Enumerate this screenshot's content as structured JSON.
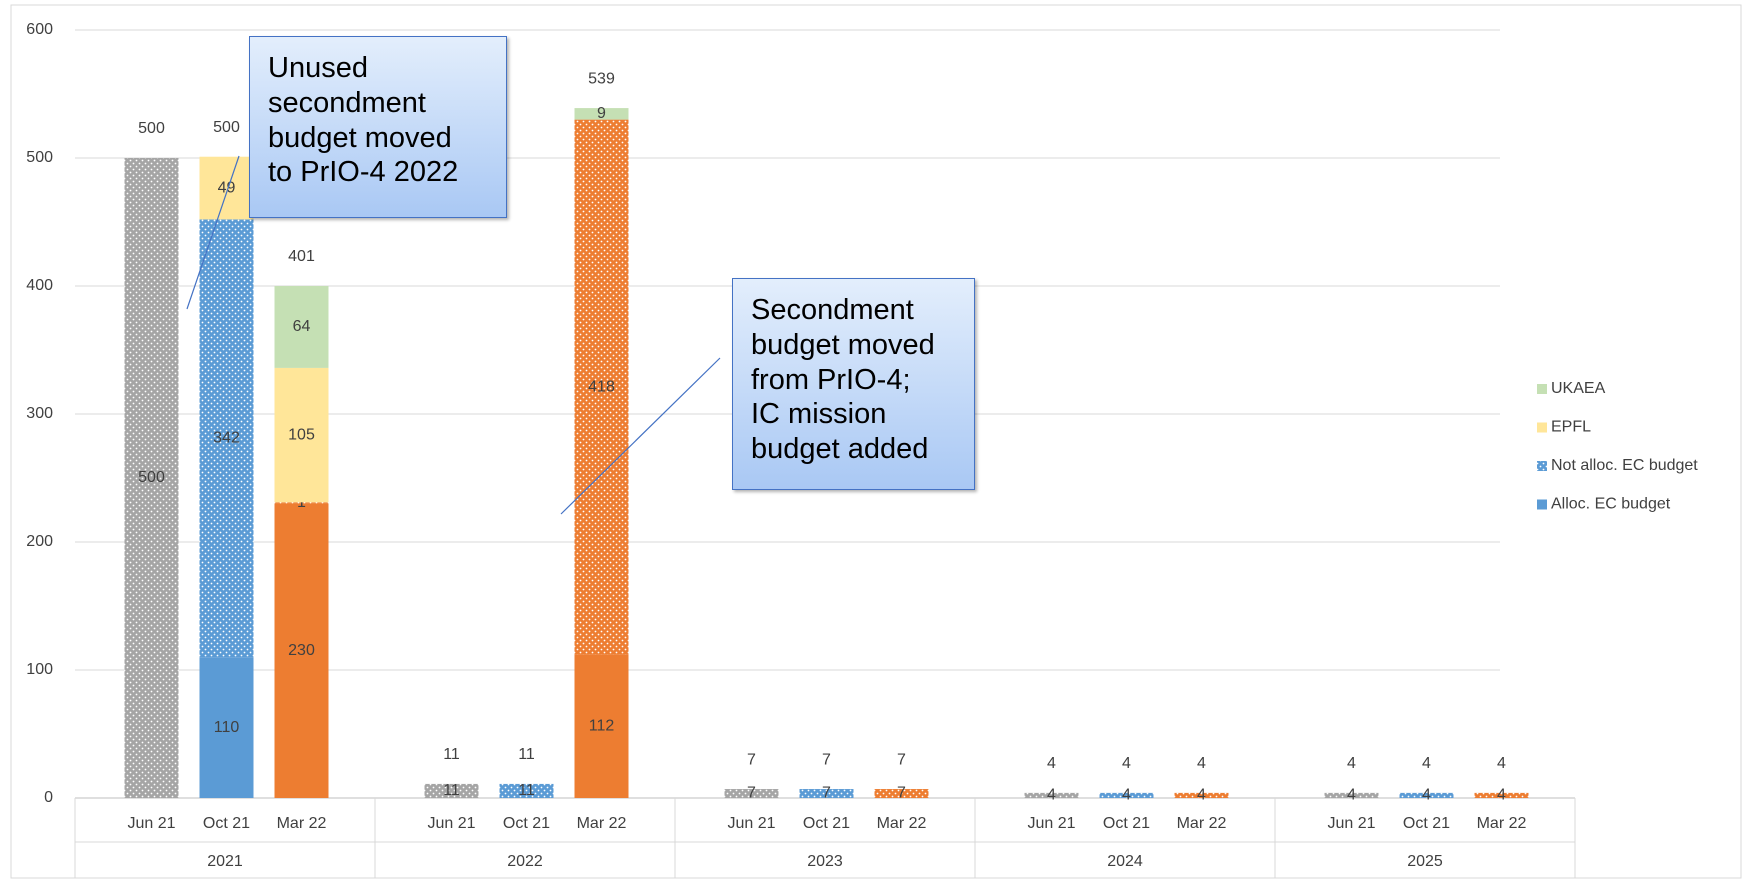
{
  "chart_data": {
    "type": "stacked_bar",
    "categories": [
      "Jun 21",
      "Oct 21",
      "Mar 22",
      "Jun 21",
      "Oct 21",
      "Mar 22",
      "Jun 21",
      "Oct 21",
      "Mar 22",
      "Jun 21",
      "Oct 21",
      "Mar 22",
      "Jun 21",
      "Oct 21",
      "Mar 22"
    ],
    "groups": [
      "2021",
      "2022",
      "2023",
      "2024",
      "2025"
    ],
    "bar_colors": [
      "#a5a5a5",
      "#5b9bd5",
      "#ed7d31",
      "#a5a5a5",
      "#5b9bd5",
      "#ed7d31",
      "#a5a5a5",
      "#5b9bd5",
      "#ed7d31",
      "#a5a5a5",
      "#5b9bd5",
      "#ed7d31",
      "#a5a5a5",
      "#5b9bd5",
      "#ed7d31"
    ],
    "series": [
      {
        "name": "Alloc. EC budget",
        "color": "#5b9bd5",
        "use_bar_color": true,
        "values": [
          null,
          110,
          230,
          null,
          null,
          112,
          null,
          null,
          null,
          null,
          null,
          null,
          null,
          null,
          null
        ]
      },
      {
        "name": "Not alloc. EC budget",
        "color": "#5b9bd5",
        "use_bar_color": true,
        "pattern": "dotted",
        "values": [
          500,
          342,
          1,
          11,
          11,
          418,
          7,
          7,
          7,
          4,
          4,
          4,
          4,
          4,
          4
        ]
      },
      {
        "name": "EPFL",
        "color": "#ffe699",
        "values": [
          null,
          49,
          105,
          null,
          null,
          null,
          null,
          null,
          null,
          null,
          null,
          null,
          null,
          null,
          null
        ]
      },
      {
        "name": "UKAEA",
        "color": "#c5e0b4",
        "values": [
          null,
          null,
          64,
          null,
          null,
          9,
          null,
          null,
          null,
          null,
          null,
          null,
          null,
          null,
          null
        ]
      }
    ],
    "totals": [
      500,
      500,
      401,
      11,
      11,
      539,
      7,
      7,
      7,
      4,
      4,
      4,
      4,
      4,
      4
    ],
    "ylim": [
      0,
      600
    ],
    "yticks": [
      0,
      100,
      200,
      300,
      400,
      500,
      600
    ],
    "grid": true,
    "legend": "right",
    "annotations": [
      {
        "text": [
          "Unused",
          "secondment",
          "budget moved",
          "to PrIO-4 2022"
        ]
      },
      {
        "text": [
          "Secondment",
          "budget moved",
          "from PrIO-4;",
          "IC mission",
          "budget added"
        ]
      }
    ]
  }
}
